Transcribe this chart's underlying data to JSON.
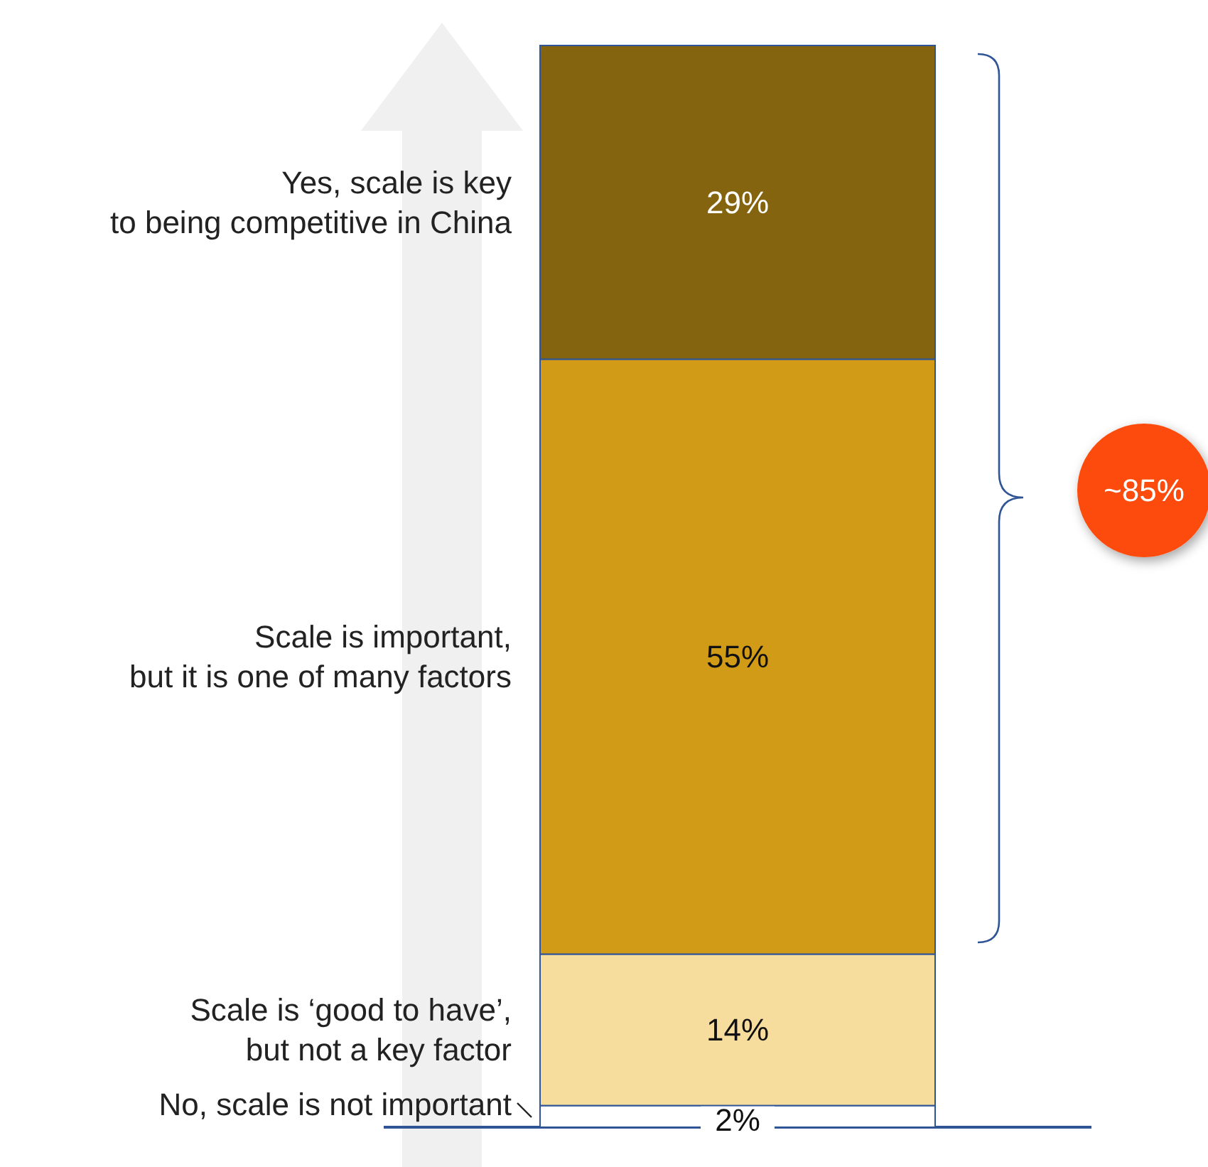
{
  "chart_data": {
    "type": "bar",
    "stacked": true,
    "categories": [
      null
    ],
    "ylim": [
      0,
      100
    ],
    "series": [
      {
        "name": "No, scale is not important",
        "color": "#ffffff",
        "values": [
          2
        ],
        "value_labels": [
          "2%"
        ]
      },
      {
        "name": "Scale is ‘good to have’,\nbut not a key factor",
        "color": "#f7dd9d",
        "values": [
          14
        ],
        "value_labels": [
          "14%"
        ]
      },
      {
        "name": "Scale is important,\nbut it is one of many factors",
        "color": "#d19a17",
        "values": [
          55
        ],
        "value_labels": [
          "55%"
        ]
      },
      {
        "name": "Yes, scale is key\nto being competitive in China",
        "color": "#85640f",
        "values": [
          29
        ],
        "value_labels": [
          "29%"
        ]
      }
    ],
    "annotations": [
      "~85%"
    ]
  }
}
